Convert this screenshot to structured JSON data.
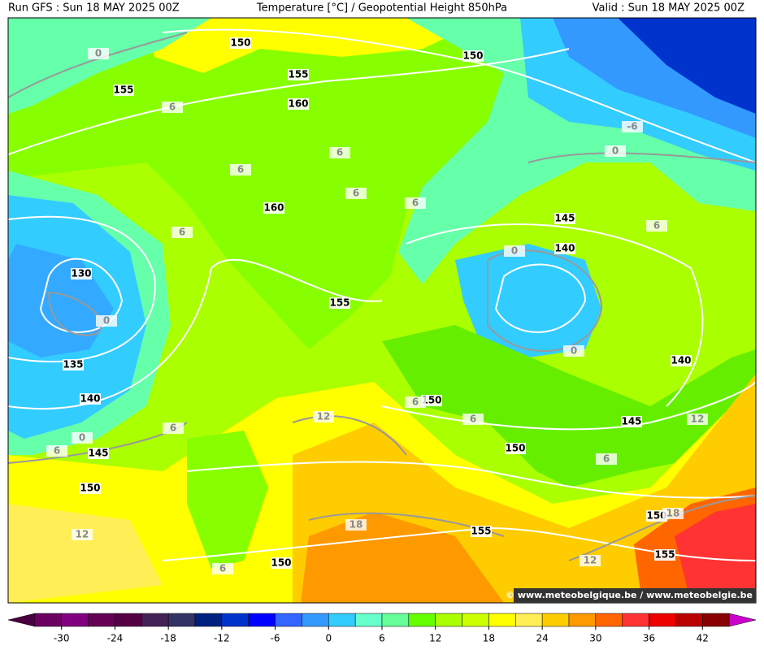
{
  "header": {
    "left": "Run GFS : Sun 18 MAY 2025 00Z",
    "center": "Temperature [°C] / Geopotential Height 850hPa",
    "right": "Valid : Sun 18 MAY 2025 00Z"
  },
  "credit": "© www.meteobelgique.be / www.meteobelgie.be",
  "height_labels": [
    150,
    150,
    155,
    155,
    160,
    160,
    130,
    135,
    140,
    145,
    150,
    155,
    145,
    140,
    140,
    150,
    145,
    150,
    150,
    155,
    155,
    150
  ],
  "temperature_labels": [
    0,
    6,
    6,
    6,
    6,
    6,
    6,
    0,
    0,
    0,
    6,
    -6,
    0,
    12,
    6,
    6,
    6,
    0,
    6,
    6,
    12,
    18,
    18,
    12,
    12,
    6
  ],
  "colorbar": {
    "range": [
      -36,
      48
    ],
    "ticks": [
      -30,
      -24,
      -18,
      -12,
      -6,
      0,
      6,
      12,
      18,
      24,
      30,
      36,
      42
    ],
    "colors": [
      "#4b0040",
      "#6a0060",
      "#800080",
      "#660055",
      "#550044",
      "#442255",
      "#333366",
      "#002080",
      "#0033cc",
      "#0000ff",
      "#3366ff",
      "#3399ff",
      "#33ccff",
      "#66ffcc",
      "#66ff99",
      "#66ff00",
      "#aaff00",
      "#ccff00",
      "#ffff00",
      "#ffee55",
      "#ffcc00",
      "#ff9900",
      "#ff6600",
      "#ff3333",
      "#ee0000",
      "#bb0000",
      "#880000",
      "#cc00cc"
    ]
  }
}
